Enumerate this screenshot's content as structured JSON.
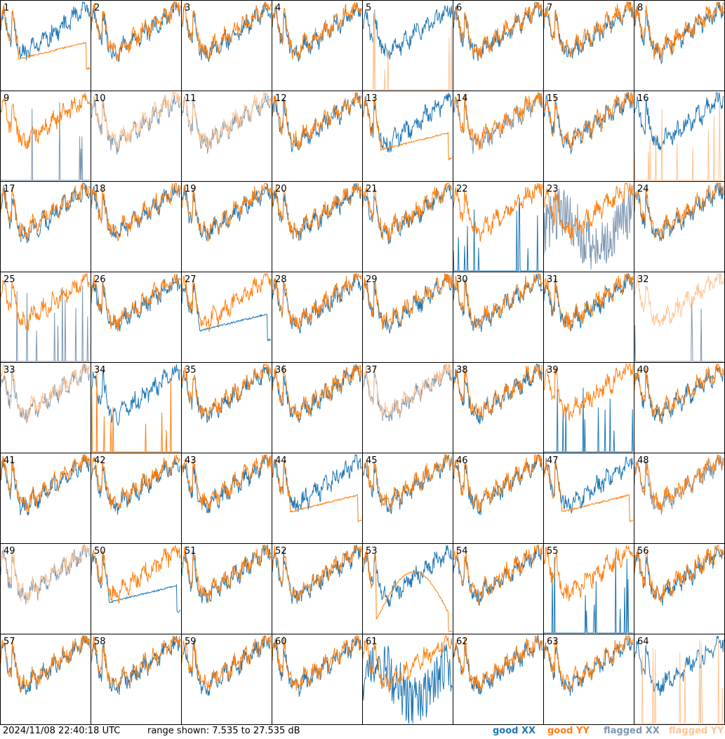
{
  "footer": {
    "timestamp": "2024/11/08 22:40:18 UTC",
    "range_text": "range shown: 7.535 to 27.535 dB",
    "legend": [
      "good XX",
      "good YY",
      "flagged XX",
      "flagged YY"
    ]
  },
  "colors": {
    "good_xx": "#1f77b4",
    "good_yy": "#ff7f0e",
    "flagged_xx": "#7d97b1",
    "flagged_yy": "#ffc493",
    "frame": "#000000"
  },
  "chart_data": {
    "type": "line",
    "title": "",
    "layout": "8x8 small multiples, one panel per antenna",
    "y_range_db": [
      7.535,
      27.535
    ],
    "x_ticks": false,
    "grid": false,
    "panels": [
      {
        "label": "1",
        "xx": "normal",
        "yy": "flat",
        "xx_flagged": false,
        "yy_flagged": false
      },
      {
        "label": "2",
        "xx": "normal",
        "yy": "normal",
        "xx_flagged": false,
        "yy_flagged": false
      },
      {
        "label": "3",
        "xx": "normal",
        "yy": "normal",
        "xx_flagged": false,
        "yy_flagged": false
      },
      {
        "label": "4",
        "xx": "normal",
        "yy": "normal",
        "xx_flagged": false,
        "yy_flagged": false
      },
      {
        "label": "5",
        "xx": "normal",
        "yy": "spiky",
        "xx_flagged": false,
        "yy_flagged": true
      },
      {
        "label": "6",
        "xx": "normal",
        "yy": "normal",
        "xx_flagged": false,
        "yy_flagged": false
      },
      {
        "label": "7",
        "xx": "normal",
        "yy": "normal",
        "xx_flagged": false,
        "yy_flagged": false
      },
      {
        "label": "8",
        "xx": "normal",
        "yy": "normal",
        "xx_flagged": false,
        "yy_flagged": false
      },
      {
        "label": "9",
        "xx": "spiky",
        "yy": "normal",
        "xx_flagged": true,
        "yy_flagged": false
      },
      {
        "label": "10",
        "xx": "normal",
        "yy": "normal",
        "xx_flagged": true,
        "yy_flagged": true
      },
      {
        "label": "11",
        "xx": "normal",
        "yy": "normal",
        "xx_flagged": true,
        "yy_flagged": true
      },
      {
        "label": "12",
        "xx": "normal",
        "yy": "normal",
        "xx_flagged": false,
        "yy_flagged": false
      },
      {
        "label": "13",
        "xx": "normal",
        "yy": "flat",
        "xx_flagged": false,
        "yy_flagged": false
      },
      {
        "label": "14",
        "xx": "normal",
        "yy": "normal",
        "xx_flagged": true,
        "yy_flagged": false
      },
      {
        "label": "15",
        "xx": "normal",
        "yy": "normal",
        "xx_flagged": false,
        "yy_flagged": false
      },
      {
        "label": "16",
        "xx": "normal",
        "yy": "spiky",
        "xx_flagged": false,
        "yy_flagged": true
      },
      {
        "label": "17",
        "xx": "normal",
        "yy": "normal",
        "xx_flagged": false,
        "yy_flagged": false
      },
      {
        "label": "18",
        "xx": "normal",
        "yy": "normal",
        "xx_flagged": false,
        "yy_flagged": false
      },
      {
        "label": "19",
        "xx": "normal",
        "yy": "normal",
        "xx_flagged": false,
        "yy_flagged": false
      },
      {
        "label": "20",
        "xx": "normal",
        "yy": "normal",
        "xx_flagged": false,
        "yy_flagged": false
      },
      {
        "label": "21",
        "xx": "normal",
        "yy": "normal",
        "xx_flagged": false,
        "yy_flagged": false
      },
      {
        "label": "22",
        "xx": "spiky",
        "yy": "normal",
        "xx_flagged": false,
        "yy_flagged": false
      },
      {
        "label": "23",
        "xx": "noisy",
        "yy": "normal",
        "xx_flagged": true,
        "yy_flagged": false
      },
      {
        "label": "24",
        "xx": "normal",
        "yy": "normal",
        "xx_flagged": false,
        "yy_flagged": false
      },
      {
        "label": "25",
        "xx": "spiky",
        "yy": "normal",
        "xx_flagged": true,
        "yy_flagged": false
      },
      {
        "label": "26",
        "xx": "normal",
        "yy": "normal",
        "xx_flagged": false,
        "yy_flagged": false
      },
      {
        "label": "27",
        "xx": "flat",
        "yy": "normal",
        "xx_flagged": false,
        "yy_flagged": false
      },
      {
        "label": "28",
        "xx": "normal",
        "yy": "normal",
        "xx_flagged": false,
        "yy_flagged": false
      },
      {
        "label": "29",
        "xx": "normal",
        "yy": "normal",
        "xx_flagged": false,
        "yy_flagged": false
      },
      {
        "label": "30",
        "xx": "normal",
        "yy": "normal",
        "xx_flagged": false,
        "yy_flagged": false
      },
      {
        "label": "31",
        "xx": "normal",
        "yy": "normal",
        "xx_flagged": false,
        "yy_flagged": false
      },
      {
        "label": "32",
        "xx": "spiky",
        "yy": "normal",
        "xx_flagged": true,
        "yy_flagged": true
      },
      {
        "label": "33",
        "xx": "normal",
        "yy": "normal",
        "xx_flagged": true,
        "yy_flagged": true
      },
      {
        "label": "34",
        "xx": "normal",
        "yy": "spiky",
        "xx_flagged": false,
        "yy_flagged": false
      },
      {
        "label": "35",
        "xx": "normal",
        "yy": "normal",
        "xx_flagged": false,
        "yy_flagged": false
      },
      {
        "label": "36",
        "xx": "normal",
        "yy": "normal",
        "xx_flagged": false,
        "yy_flagged": false
      },
      {
        "label": "37",
        "xx": "normal",
        "yy": "normal",
        "xx_flagged": true,
        "yy_flagged": true
      },
      {
        "label": "38",
        "xx": "normal",
        "yy": "normal",
        "xx_flagged": false,
        "yy_flagged": false
      },
      {
        "label": "39",
        "xx": "spiky",
        "yy": "normal",
        "xx_flagged": false,
        "yy_flagged": false
      },
      {
        "label": "40",
        "xx": "normal",
        "yy": "normal",
        "xx_flagged": false,
        "yy_flagged": false
      },
      {
        "label": "41",
        "xx": "normal",
        "yy": "normal",
        "xx_flagged": false,
        "yy_flagged": false
      },
      {
        "label": "42",
        "xx": "normal",
        "yy": "normal",
        "xx_flagged": false,
        "yy_flagged": false
      },
      {
        "label": "43",
        "xx": "normal",
        "yy": "normal",
        "xx_flagged": false,
        "yy_flagged": false
      },
      {
        "label": "44",
        "xx": "normal",
        "yy": "flat",
        "xx_flagged": false,
        "yy_flagged": false
      },
      {
        "label": "45",
        "xx": "normal",
        "yy": "normal",
        "xx_flagged": false,
        "yy_flagged": false
      },
      {
        "label": "46",
        "xx": "normal",
        "yy": "normal",
        "xx_flagged": false,
        "yy_flagged": false
      },
      {
        "label": "47",
        "xx": "normal",
        "yy": "flat",
        "xx_flagged": false,
        "yy_flagged": false
      },
      {
        "label": "48",
        "xx": "normal",
        "yy": "normal",
        "xx_flagged": true,
        "yy_flagged": false
      },
      {
        "label": "49",
        "xx": "normal",
        "yy": "normal",
        "xx_flagged": true,
        "yy_flagged": true
      },
      {
        "label": "50",
        "xx": "flat",
        "yy": "normal",
        "xx_flagged": false,
        "yy_flagged": false
      },
      {
        "label": "51",
        "xx": "normal",
        "yy": "normal",
        "xx_flagged": false,
        "yy_flagged": false
      },
      {
        "label": "52",
        "xx": "normal",
        "yy": "normal",
        "xx_flagged": false,
        "yy_flagged": false
      },
      {
        "label": "53",
        "xx": "normal",
        "yy": "arc",
        "xx_flagged": false,
        "yy_flagged": false
      },
      {
        "label": "54",
        "xx": "normal",
        "yy": "normal",
        "xx_flagged": false,
        "yy_flagged": false
      },
      {
        "label": "55",
        "xx": "spiky",
        "yy": "normal",
        "xx_flagged": false,
        "yy_flagged": false
      },
      {
        "label": "56",
        "xx": "normal",
        "yy": "normal",
        "xx_flagged": false,
        "yy_flagged": false
      },
      {
        "label": "57",
        "xx": "normal",
        "yy": "normal",
        "xx_flagged": false,
        "yy_flagged": false
      },
      {
        "label": "58",
        "xx": "normal",
        "yy": "normal",
        "xx_flagged": false,
        "yy_flagged": false
      },
      {
        "label": "59",
        "xx": "normal",
        "yy": "normal",
        "xx_flagged": false,
        "yy_flagged": false
      },
      {
        "label": "60",
        "xx": "normal",
        "yy": "normal",
        "xx_flagged": false,
        "yy_flagged": false
      },
      {
        "label": "61",
        "xx": "noisy",
        "yy": "normal",
        "xx_flagged": false,
        "yy_flagged": false
      },
      {
        "label": "62",
        "xx": "normal",
        "yy": "normal",
        "xx_flagged": false,
        "yy_flagged": false
      },
      {
        "label": "63",
        "xx": "normal",
        "yy": "normal",
        "xx_flagged": false,
        "yy_flagged": false
      },
      {
        "label": "64",
        "xx": "normal",
        "yy": "spiky",
        "xx_flagged": false,
        "yy_flagged": true
      }
    ]
  }
}
